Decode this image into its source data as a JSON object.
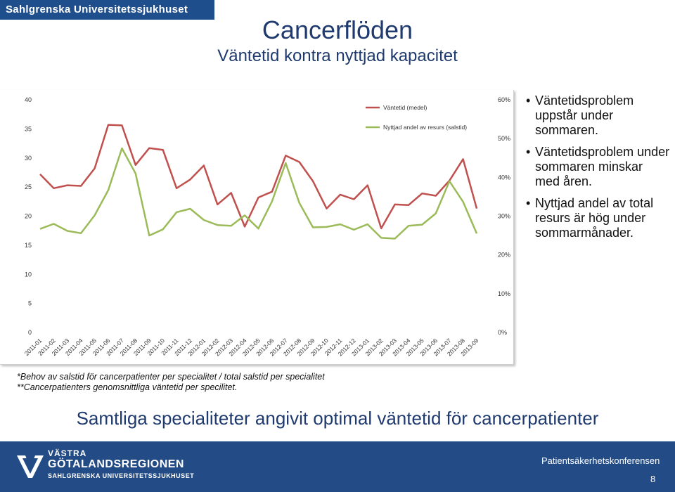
{
  "header": {
    "brand": "Sahlgrenska Universitetssjukhuset"
  },
  "title": "Cancerflöden",
  "subtitle": "Väntetid kontra nyttjad kapacitet",
  "chart_data": {
    "type": "line",
    "x": [
      "2011-01",
      "2011-02",
      "2011-03",
      "2011-04",
      "2011-05",
      "2011-06",
      "2011-07",
      "2011-08",
      "2011-09",
      "2011-10",
      "2011-11",
      "2011-12",
      "2012-01",
      "2012-02",
      "2012-03",
      "2012-04",
      "2012-05",
      "2012-06",
      "2012-07",
      "2012-08",
      "2012-09",
      "2012-10",
      "2012-11",
      "2012-12",
      "2013-01",
      "2013-02",
      "2013-03",
      "2013-04",
      "2013-05",
      "2013-06",
      "2013-07",
      "2013-08",
      "2013-09"
    ],
    "left_axis": {
      "ylim": [
        0,
        40
      ],
      "ticks": [
        "0",
        "5",
        "10",
        "15",
        "20",
        "25",
        "30",
        "35",
        "40"
      ]
    },
    "right_axis": {
      "ylim": [
        0,
        60
      ],
      "ticks": [
        "0%",
        "10%",
        "20%",
        "30%",
        "40%",
        "50%",
        "60%"
      ]
    },
    "series": [
      {
        "name": "Väntetid (medel)",
        "axis": "left",
        "color": "#c0504d",
        "values": [
          27.2,
          24.8,
          25.3,
          25.2,
          28.2,
          35.7,
          35.6,
          28.8,
          31.7,
          31.4,
          24.8,
          26.3,
          28.7,
          22.0,
          24.0,
          18.2,
          23.2,
          24.2,
          30.4,
          29.3,
          26.0,
          21.3,
          23.7,
          22.9,
          25.3,
          17.9,
          22.0,
          21.9,
          23.9,
          23.5,
          26.1,
          29.8,
          21.3
        ]
      },
      {
        "name": "Nyttjad andel av resurs (salstid)",
        "axis": "right",
        "color": "#9bbb59",
        "values": [
          26.7,
          28.0,
          26.2,
          25.6,
          30.2,
          36.7,
          47.5,
          41.0,
          25.0,
          26.6,
          31.0,
          31.9,
          29.0,
          27.7,
          27.5,
          30.2,
          26.8,
          33.8,
          43.7,
          33.4,
          27.1,
          27.2,
          27.9,
          26.5,
          27.9,
          24.4,
          24.2,
          27.5,
          27.8,
          30.7,
          39.0,
          33.7,
          25.5
        ]
      }
    ],
    "legend": "top-right",
    "grid": false
  },
  "bullets": [
    "Väntetidsproblem uppstår under sommaren.",
    "Väntetidsproblem under sommaren minskar med åren.",
    "Nyttjad andel av total resurs är hög under sommarmånader."
  ],
  "notes": [
    "*Behov av salstid för cancerpatienter per specialitet / total salstid per specialitet",
    "**Cancerpatienters genomsnittliga väntetid per specilitet."
  ],
  "bottom_title": "Samtliga specialiteter angivit optimal väntetid för cancerpatienter",
  "footer": {
    "logo_line1": "VÄSTRA",
    "logo_line2": "GÖTALANDSREGIONEN",
    "logo_line3": "SAHLGRENSKA UNIVERSITETSSJUKHUSET",
    "conference": "Patientsäkerhetskonferensen",
    "page_number": "8"
  }
}
